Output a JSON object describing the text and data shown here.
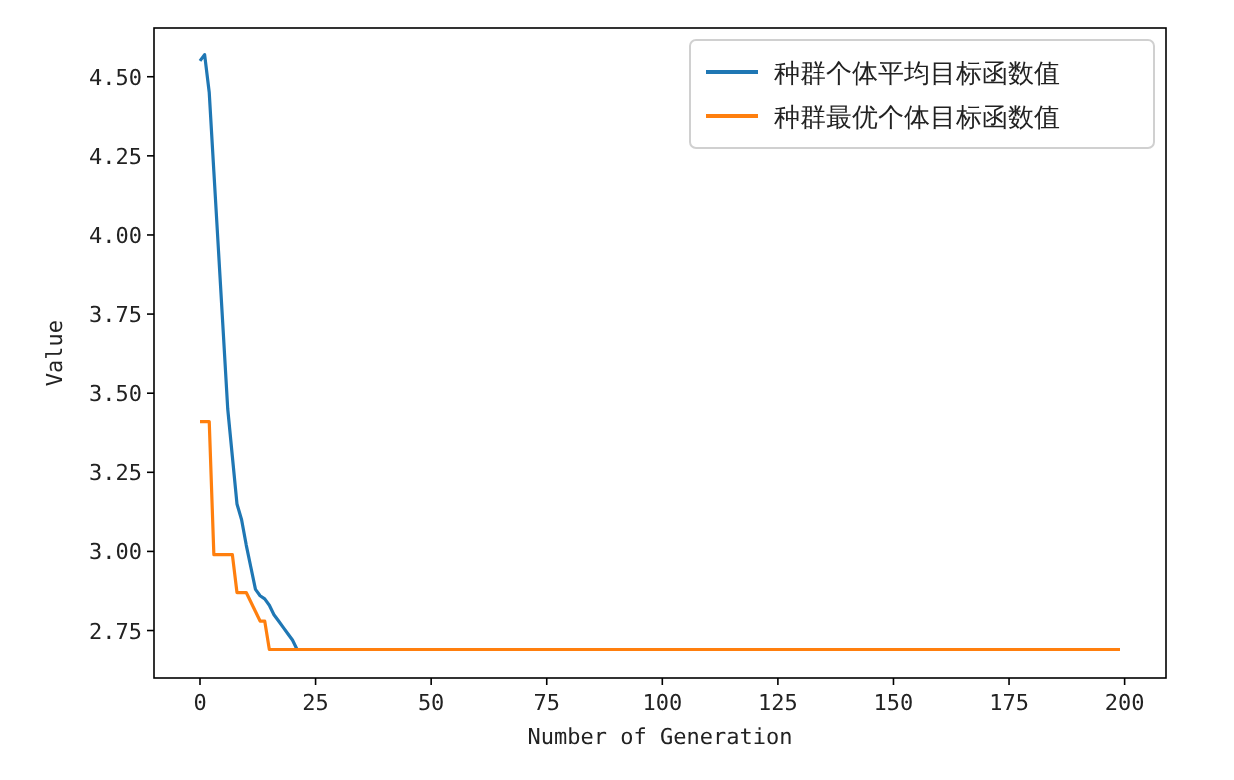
{
  "chart_data": {
    "type": "line",
    "xlabel": "Number of Generation",
    "ylabel": "Value",
    "xlim": [
      -9.95,
      208.95
    ],
    "ylim": [
      2.6,
      4.654
    ],
    "xticks": [
      0,
      25,
      50,
      75,
      100,
      125,
      150,
      175,
      200
    ],
    "yticks": [
      {
        "value": 2.75,
        "label": "2.75"
      },
      {
        "value": 3.0,
        "label": "3.00"
      },
      {
        "value": 3.25,
        "label": "3.25"
      },
      {
        "value": 3.5,
        "label": "3.50"
      },
      {
        "value": 3.75,
        "label": "3.75"
      },
      {
        "value": 4.0,
        "label": "4.00"
      },
      {
        "value": 4.25,
        "label": "4.25"
      },
      {
        "value": 4.5,
        "label": "4.50"
      }
    ],
    "grid": false,
    "legend": "top right",
    "series": [
      {
        "name": "种群个体平均目标函数值",
        "color": "#1f77b4",
        "x": [
          0,
          1,
          2,
          3,
          4,
          5,
          6,
          7,
          8,
          9,
          10,
          11,
          12,
          13,
          14,
          15,
          16,
          17,
          18,
          19,
          20,
          21
        ],
        "values": [
          4.55,
          4.57,
          4.45,
          4.2,
          3.95,
          3.7,
          3.45,
          3.3,
          3.15,
          3.1,
          3.02,
          2.95,
          2.88,
          2.86,
          2.85,
          2.83,
          2.8,
          2.78,
          2.76,
          2.74,
          2.72,
          2.69
        ]
      },
      {
        "name": "种群最优个体目标函数值",
        "color": "#ff7f0e",
        "x": [
          0,
          2,
          3,
          7,
          8,
          10,
          11,
          12,
          13,
          14,
          15,
          199
        ],
        "values": [
          3.41,
          3.41,
          2.99,
          2.99,
          2.87,
          2.87,
          2.84,
          2.81,
          2.78,
          2.78,
          2.69,
          2.69
        ]
      }
    ]
  }
}
